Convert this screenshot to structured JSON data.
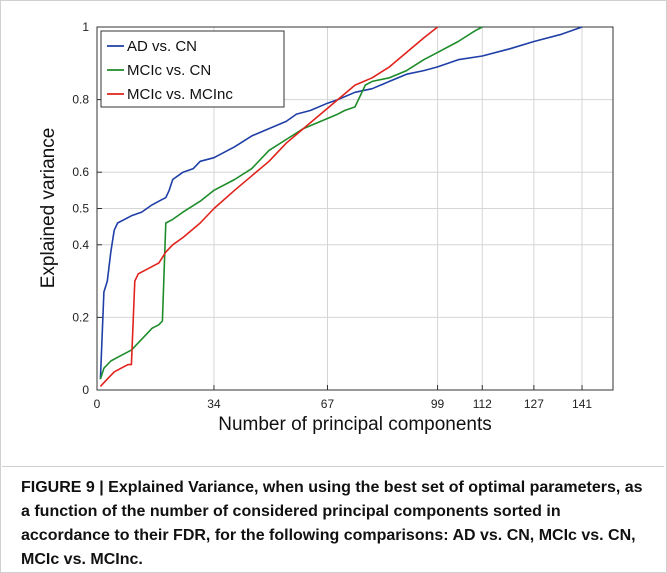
{
  "chart_data": {
    "type": "line",
    "title": "",
    "xlabel": "Number of principal components",
    "ylabel": "Explained variance",
    "xlim": [
      0,
      150
    ],
    "ylim": [
      0,
      1
    ],
    "xticks": [
      0,
      34,
      67,
      99,
      112,
      127,
      141
    ],
    "yticks": [
      0,
      0.2,
      0.4,
      0.5,
      0.6,
      0.8,
      1
    ],
    "ytick_labels": [
      "0",
      "0.2",
      "0.4",
      "0.5",
      "0.6",
      "0.8",
      "1"
    ],
    "grid": true,
    "legend_position": "top-left",
    "series": [
      {
        "name": "AD vs. CN",
        "color": "#1f3fa6",
        "x": [
          1,
          2,
          3,
          4,
          5,
          6,
          8,
          10,
          13,
          16,
          18,
          20,
          21,
          22,
          25,
          28,
          30,
          34,
          40,
          45,
          50,
          55,
          58,
          62,
          67,
          70,
          75,
          80,
          85,
          90,
          95,
          99,
          105,
          112,
          120,
          127,
          135,
          141
        ],
        "y": [
          0.03,
          0.27,
          0.3,
          0.38,
          0.44,
          0.46,
          0.47,
          0.48,
          0.49,
          0.51,
          0.52,
          0.53,
          0.55,
          0.58,
          0.6,
          0.61,
          0.63,
          0.64,
          0.67,
          0.7,
          0.72,
          0.74,
          0.76,
          0.77,
          0.79,
          0.8,
          0.82,
          0.83,
          0.85,
          0.87,
          0.88,
          0.89,
          0.91,
          0.92,
          0.94,
          0.96,
          0.98,
          1.0
        ]
      },
      {
        "name": "MCIc vs. CN",
        "color": "#1e8c2a",
        "x": [
          1,
          2,
          4,
          6,
          8,
          10,
          12,
          14,
          16,
          18,
          19,
          20,
          22,
          25,
          30,
          34,
          40,
          45,
          50,
          55,
          60,
          65,
          70,
          72,
          75,
          78,
          80,
          85,
          90,
          95,
          99,
          105,
          110,
          112
        ],
        "y": [
          0.03,
          0.06,
          0.08,
          0.09,
          0.1,
          0.11,
          0.13,
          0.15,
          0.17,
          0.18,
          0.19,
          0.46,
          0.47,
          0.49,
          0.52,
          0.55,
          0.58,
          0.61,
          0.66,
          0.69,
          0.72,
          0.74,
          0.76,
          0.77,
          0.78,
          0.84,
          0.85,
          0.86,
          0.88,
          0.91,
          0.93,
          0.96,
          0.99,
          1.0
        ]
      },
      {
        "name": "MCIc vs. MCInc",
        "color": "#e0231c",
        "x": [
          1,
          2,
          3,
          5,
          7,
          9,
          10,
          11,
          12,
          14,
          16,
          18,
          20,
          22,
          25,
          30,
          34,
          40,
          45,
          50,
          55,
          60,
          65,
          70,
          75,
          80,
          85,
          90,
          95,
          99
        ],
        "y": [
          0.01,
          0.02,
          0.03,
          0.05,
          0.06,
          0.07,
          0.07,
          0.3,
          0.32,
          0.33,
          0.34,
          0.35,
          0.38,
          0.4,
          0.42,
          0.46,
          0.5,
          0.55,
          0.59,
          0.63,
          0.68,
          0.72,
          0.76,
          0.8,
          0.84,
          0.86,
          0.89,
          0.93,
          0.97,
          1.0
        ]
      }
    ]
  },
  "caption": "FIGURE 9 | Explained Variance, when using the best set of optimal parameters, as a function of the number of considered principal components sorted in accordance to their FDR, for the following comparisons: AD vs. CN, MCIc vs. CN, MCIc vs. MCInc."
}
